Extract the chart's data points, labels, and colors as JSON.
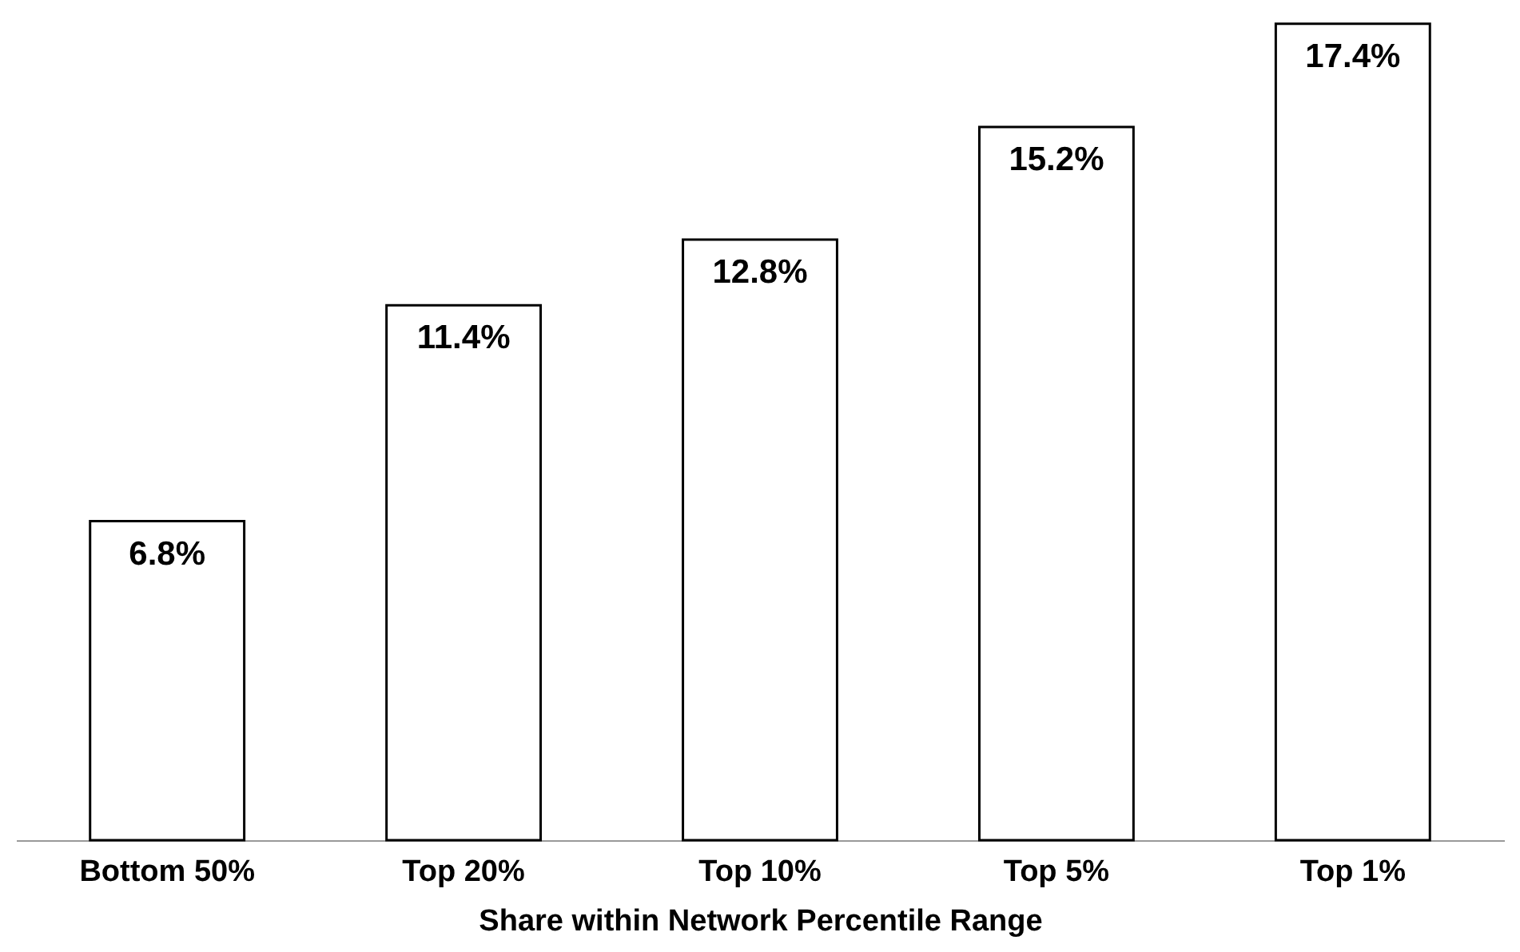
{
  "chart_data": {
    "type": "bar",
    "xlabel": "Share within Network Percentile Range",
    "categories": [
      "Bottom 50%",
      "Top 20%",
      "Top 10%",
      "Top 5%",
      "Top 1%"
    ],
    "values": [
      6.8,
      11.4,
      12.8,
      15.2,
      17.4
    ],
    "value_labels": [
      "6.8%",
      "11.4%",
      "12.8%",
      "15.2%",
      "17.4%"
    ],
    "color": "#ffffff",
    "ylim": [
      0,
      17.5
    ],
    "grid": false
  }
}
